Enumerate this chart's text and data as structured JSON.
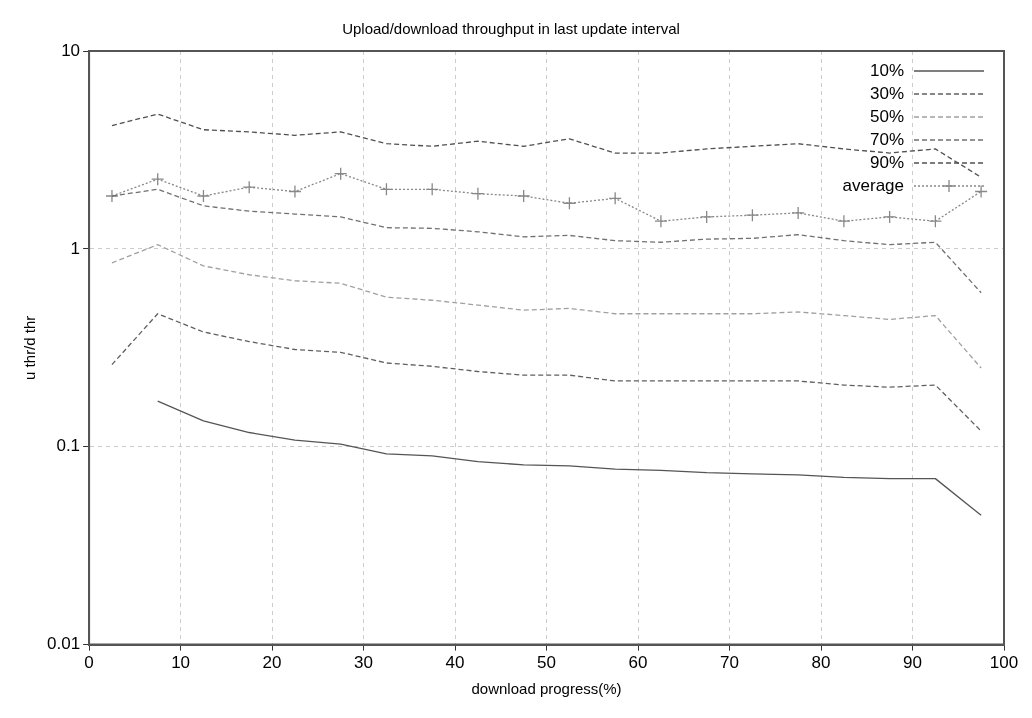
{
  "chart_data": {
    "type": "line",
    "title": "Upload/download throughput in last update interval",
    "xlabel": "download progress(%)",
    "ylabel": "u thr/d thr",
    "x": [
      2.5,
      7.5,
      12.5,
      17.5,
      22.5,
      27.5,
      32.5,
      37.5,
      42.5,
      47.5,
      52.5,
      57.5,
      62.5,
      67.5,
      72.5,
      77.5,
      82.5,
      87.5,
      92.5,
      97.5
    ],
    "series": [
      {
        "name": "10%",
        "color": "#555555",
        "line_style": "solid",
        "marker": "none",
        "values": [
          null,
          0.17,
          0.135,
          0.118,
          0.108,
          0.103,
          0.092,
          0.09,
          0.084,
          0.081,
          0.08,
          0.077,
          0.076,
          0.074,
          0.073,
          0.072,
          0.07,
          0.069,
          0.069,
          0.045
        ]
      },
      {
        "name": "30%",
        "color": "#606060",
        "line_style": "dashed",
        "marker": "none",
        "values": [
          0.26,
          0.47,
          0.38,
          0.34,
          0.31,
          0.3,
          0.265,
          0.255,
          0.24,
          0.23,
          0.23,
          0.215,
          0.215,
          0.215,
          0.215,
          0.215,
          0.205,
          0.2,
          0.205,
          0.12
        ]
      },
      {
        "name": "50%",
        "color": "#a0a0a0",
        "line_style": "dashed",
        "marker": "none",
        "values": [
          0.85,
          1.05,
          0.82,
          0.74,
          0.69,
          0.67,
          0.57,
          0.55,
          0.52,
          0.49,
          0.5,
          0.47,
          0.47,
          0.47,
          0.47,
          0.48,
          0.46,
          0.44,
          0.46,
          0.25
        ]
      },
      {
        "name": "70%",
        "color": "#707070",
        "line_style": "dashed",
        "marker": "none",
        "values": [
          1.85,
          2.0,
          1.65,
          1.55,
          1.5,
          1.45,
          1.28,
          1.27,
          1.22,
          1.15,
          1.17,
          1.1,
          1.08,
          1.12,
          1.13,
          1.18,
          1.1,
          1.05,
          1.08,
          0.6
        ]
      },
      {
        "name": "90%",
        "color": "#505050",
        "line_style": "dashed",
        "marker": "none",
        "values": [
          4.2,
          4.8,
          4.0,
          3.9,
          3.75,
          3.9,
          3.4,
          3.3,
          3.5,
          3.3,
          3.6,
          3.05,
          3.05,
          3.2,
          3.3,
          3.4,
          3.2,
          3.05,
          3.2,
          2.3
        ]
      },
      {
        "name": "average",
        "color": "#888888",
        "line_style": "dotted",
        "marker": "cross",
        "values": [
          1.85,
          2.25,
          1.85,
          2.05,
          1.95,
          2.4,
          2.0,
          2.0,
          1.9,
          1.85,
          1.7,
          1.8,
          1.38,
          1.45,
          1.48,
          1.52,
          1.38,
          1.45,
          1.38,
          1.95
        ]
      }
    ],
    "xlim": [
      0,
      100
    ],
    "xticks": [
      0,
      10,
      20,
      30,
      40,
      50,
      60,
      70,
      80,
      90,
      100
    ],
    "ylim": [
      0.01,
      10
    ],
    "yticks": [
      0.01,
      0.1,
      1,
      10
    ],
    "log": "y",
    "grid": true,
    "legend": "top right"
  }
}
